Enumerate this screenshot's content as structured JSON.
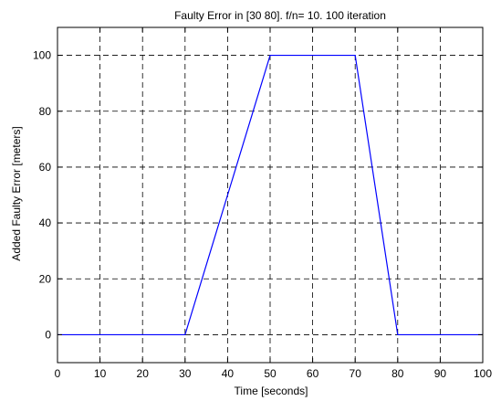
{
  "chart_data": {
    "type": "line",
    "title": "Faulty Error in [30 80]. f/n= 10. 100 iteration",
    "xlabel": "Time [seconds]",
    "ylabel": "Added Faulty Error [meters]",
    "xlim": [
      0,
      100
    ],
    "ylim": [
      -10,
      110
    ],
    "xticks": [
      0,
      10,
      20,
      30,
      40,
      50,
      60,
      70,
      80,
      90,
      100
    ],
    "yticks": [
      0,
      20,
      40,
      60,
      80,
      100
    ],
    "grid": true,
    "series": [
      {
        "color": "#0000ff",
        "x": [
          0,
          30,
          50,
          70,
          80,
          100
        ],
        "y": [
          0,
          0,
          100,
          100,
          0,
          0
        ]
      }
    ]
  },
  "colors": {
    "axis": "#000000",
    "grid": "#000000",
    "line": "#0000ff",
    "background": "#ffffff"
  }
}
